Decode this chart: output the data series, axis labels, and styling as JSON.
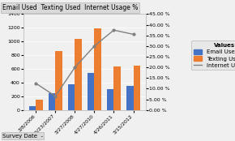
{
  "categories": [
    "3/8/2006",
    "10/23/2007",
    "3/27/2008",
    "4/27/2010",
    "4/26/2011",
    "3/15/2012"
  ],
  "email_used": [
    60,
    250,
    380,
    540,
    300,
    350
  ],
  "texting_used": [
    150,
    860,
    1040,
    1190,
    630,
    650
  ],
  "internet_usage_pct": [
    0.125,
    0.065,
    0.2,
    0.3,
    0.375,
    0.355
  ],
  "bar_width": 0.35,
  "email_color": "#4472C4",
  "texting_color": "#ED7D31",
  "line_color": "#808080",
  "title": "Email Used  Texting Used  Internet Usage %",
  "ylim_left": [
    0,
    1400
  ],
  "ylim_right": [
    0,
    0.45
  ],
  "yticks_left": [
    0,
    200,
    400,
    600,
    800,
    1000,
    1200,
    1400
  ],
  "yticks_right": [
    0.0,
    0.05,
    0.1,
    0.15,
    0.2,
    0.25,
    0.3,
    0.35,
    0.4,
    0.45
  ],
  "ytick_labels_right": [
    "0.00 %",
    "5.00 %",
    "10.00 %",
    "15.00 %",
    "20.00 %",
    "25.00 %",
    "30.00 %",
    "35.00 %",
    "40.00 %",
    "45.00 %"
  ],
  "legend_title": "Values",
  "legend_labels": [
    "Email Used",
    "Texting Used",
    "Internet Usage %"
  ],
  "xlabel": "Survey Date  -",
  "background_color": "#F0F0F0",
  "plot_bg_color": "#F0F0F0",
  "title_fontsize": 5.5,
  "tick_fontsize": 4.5,
  "legend_fontsize": 5.0,
  "xlabel_fontsize": 5.0
}
